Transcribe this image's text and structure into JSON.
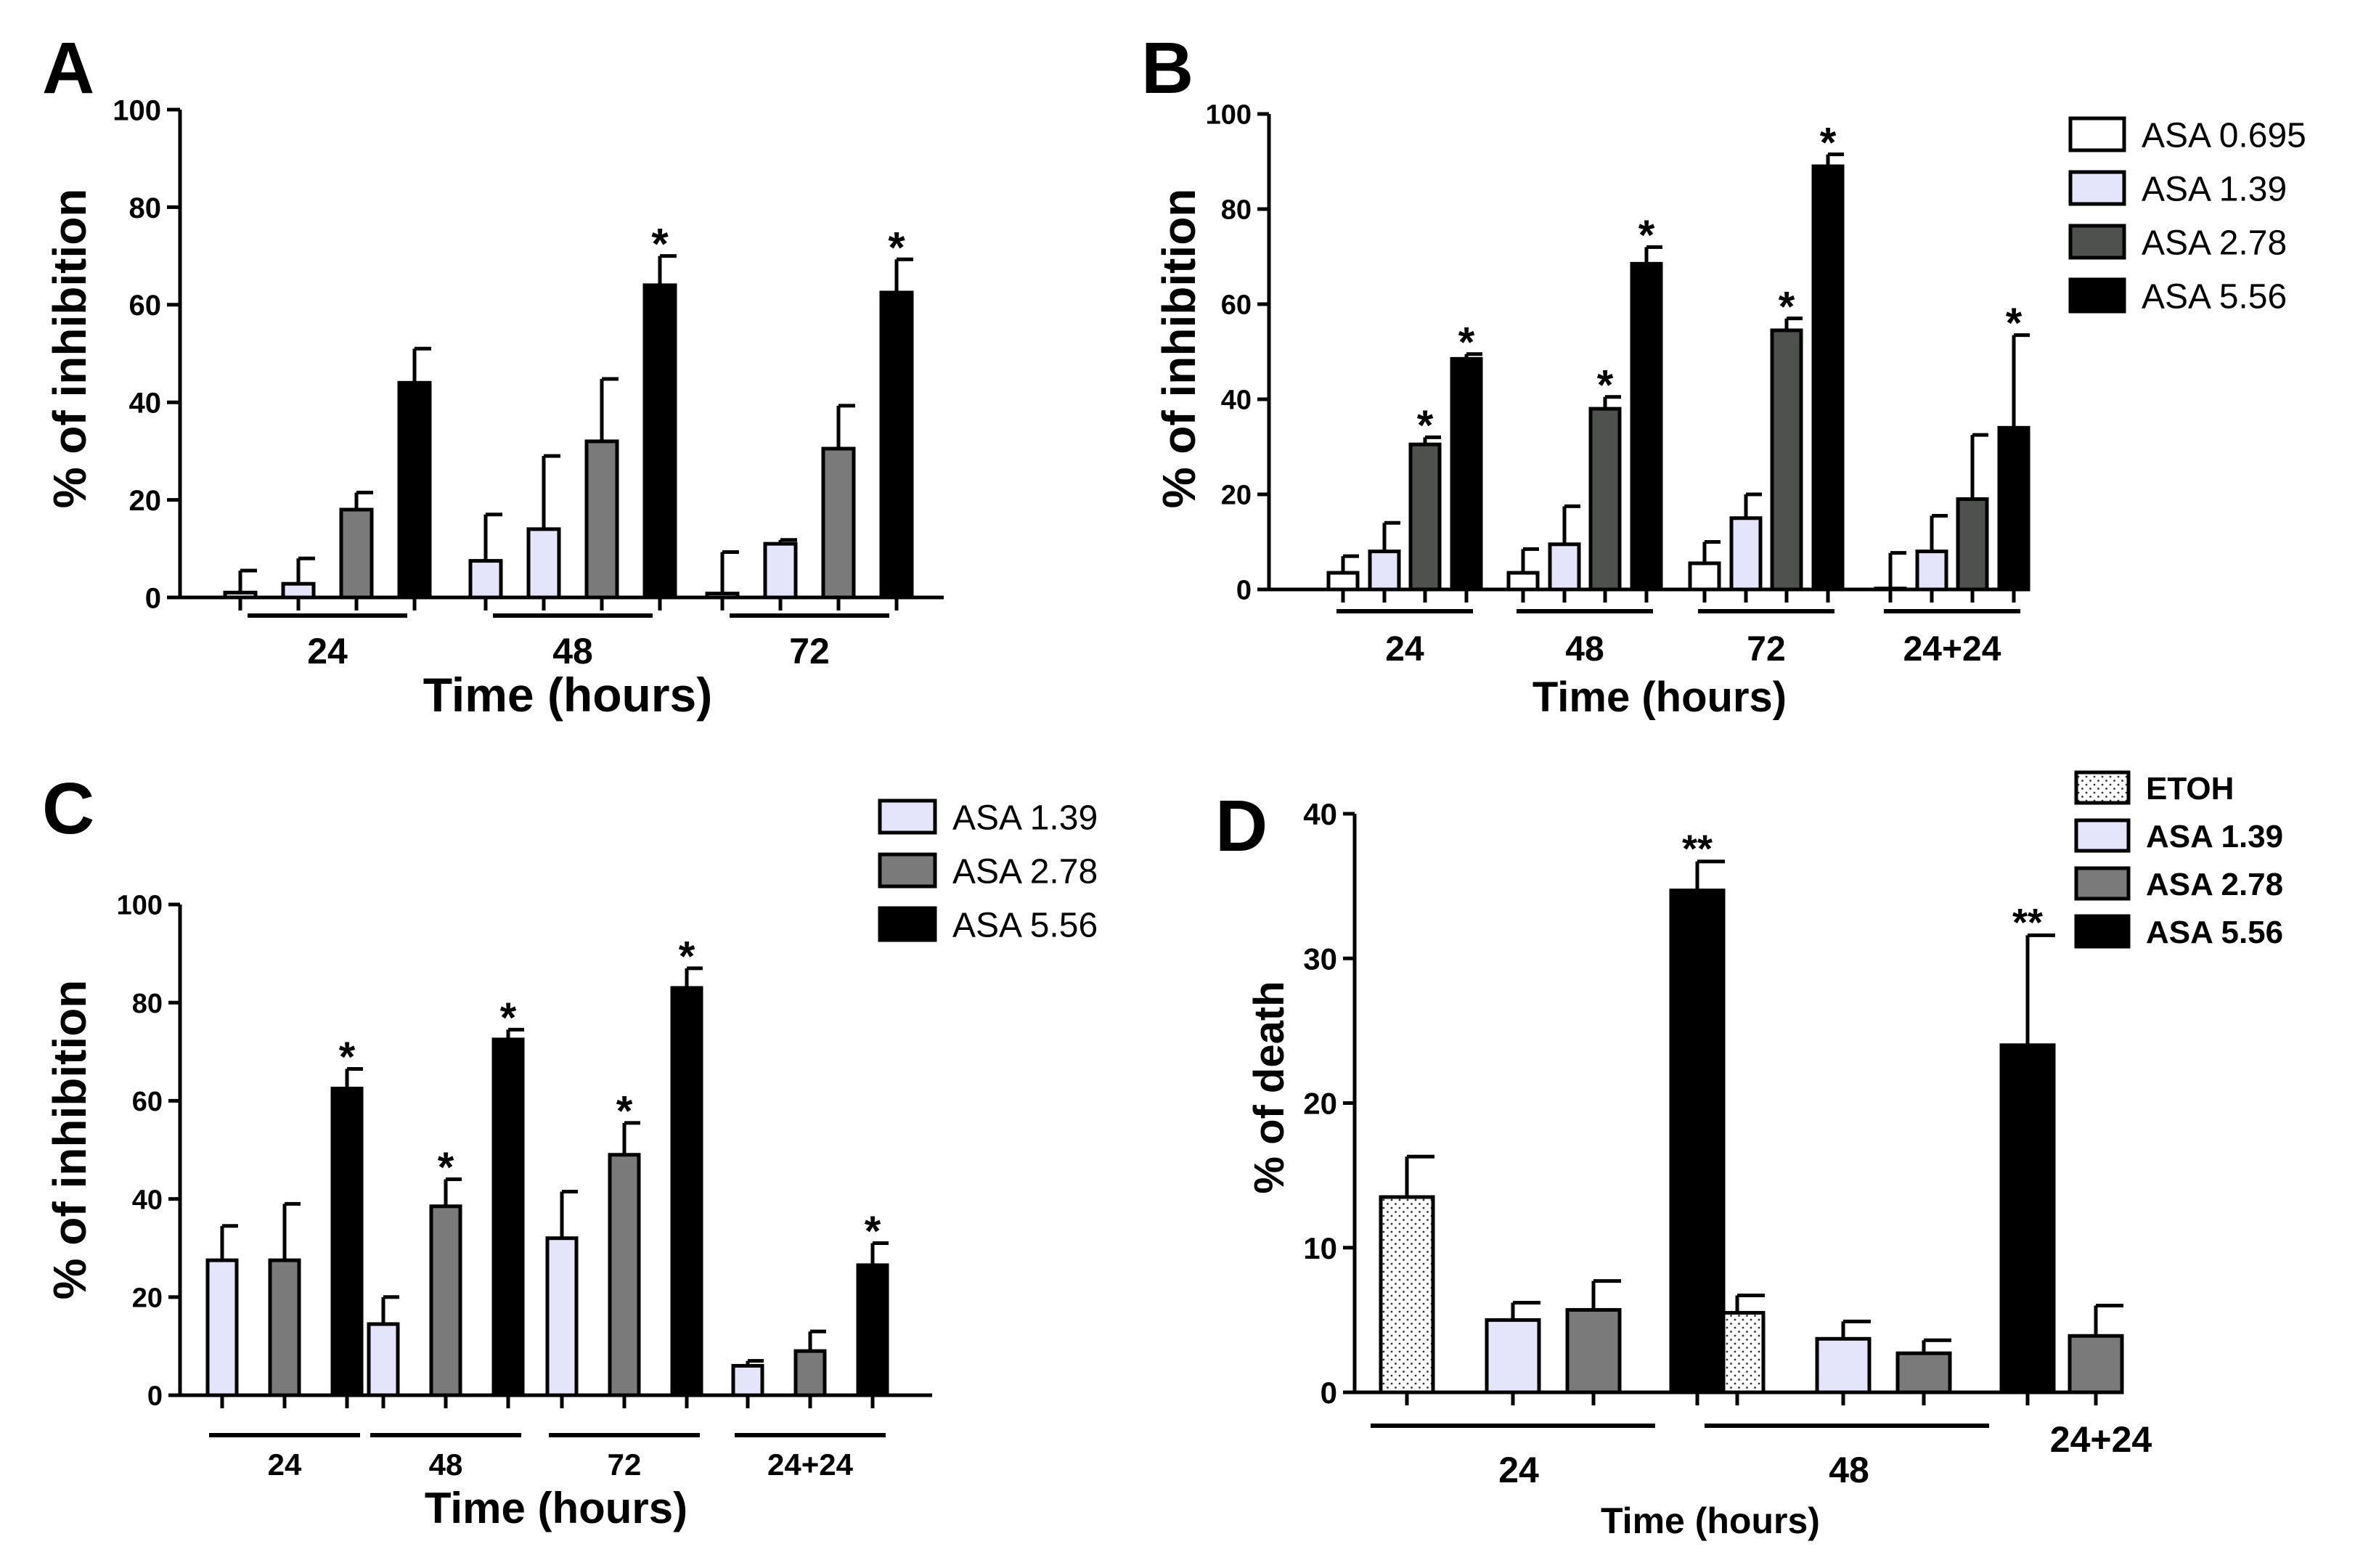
{
  "colors": {
    "ETOH": "#ffffff",
    "ASA 0.695": "#ffffff",
    "ASA 1.39": "#e4e4fa",
    "ASA 2.78": "#7a7a7a",
    "ASA 5.56": "#000000",
    "ASA 2.78 (panel B)": "#4e514e"
  },
  "chart_data": [
    {
      "panel": "A",
      "type": "bar",
      "ylabel": "% of inhibition",
      "xlabel": "Time (hours)",
      "ylim": [
        0,
        100
      ],
      "yticks": [
        0,
        20,
        40,
        60,
        80,
        100
      ],
      "categories": [
        "24",
        "48",
        "72"
      ],
      "legend": [],
      "series": [
        {
          "name": "ASA 1.39",
          "values": [
            1,
            7.5,
            0.8
          ],
          "errors": [
            4.5,
            9.5,
            8.5
          ],
          "sig": [
            "",
            "",
            ""
          ]
        },
        {
          "name": "ASA 1.39",
          "values": [
            2.8,
            14,
            11
          ],
          "errors": [
            5.2,
            15,
            0.8
          ],
          "sig": [
            "",
            "",
            ""
          ]
        },
        {
          "name": "ASA 2.78",
          "values": [
            18,
            32,
            30.5
          ],
          "errors": [
            3.5,
            12.8,
            8.8
          ],
          "sig": [
            "",
            "",
            ""
          ]
        },
        {
          "name": "ASA 5.56",
          "values": [
            44,
            64,
            62.5
          ],
          "errors": [
            7,
            6,
            6.8
          ],
          "sig": [
            "",
            "*",
            "*"
          ]
        }
      ]
    },
    {
      "panel": "B",
      "type": "bar",
      "ylabel": "% of inhibition",
      "xlabel": "Time (hours)",
      "ylim": [
        0,
        100
      ],
      "yticks": [
        0,
        20,
        40,
        60,
        80,
        100
      ],
      "categories": [
        "24",
        "48",
        "72",
        "24+24"
      ],
      "legend": [
        "ASA 0.695",
        "ASA 1.39",
        "ASA 2.78",
        "ASA 5.56"
      ],
      "series": [
        {
          "name": "ASA 0.695",
          "values": [
            3.5,
            3.5,
            5.5,
            0.2
          ],
          "errors": [
            3.5,
            5,
            4.5,
            7.5
          ],
          "sig": [
            "",
            "",
            "",
            ""
          ]
        },
        {
          "name": "ASA 1.39",
          "values": [
            8,
            9.5,
            15,
            8
          ],
          "errors": [
            6,
            8,
            5,
            7.5
          ],
          "sig": [
            "",
            "",
            "",
            ""
          ]
        },
        {
          "name": "ASA 2.78",
          "values": [
            30.5,
            38,
            54.5,
            19
          ],
          "errors": [
            1.5,
            2.5,
            2.5,
            13.5
          ],
          "sig": [
            "*",
            "*",
            "*",
            ""
          ]
        },
        {
          "name": "ASA 5.56",
          "values": [
            48.5,
            68.5,
            89,
            34
          ],
          "errors": [
            1,
            3.5,
            2.5,
            19.5
          ],
          "sig": [
            "*",
            "*",
            "*",
            "*"
          ]
        }
      ]
    },
    {
      "panel": "C",
      "type": "bar",
      "ylabel": "% of inhibition",
      "xlabel": "Time (hours)",
      "ylim": [
        0,
        100
      ],
      "yticks": [
        0,
        20,
        40,
        60,
        80,
        100
      ],
      "categories": [
        "24",
        "48",
        "72",
        "24+24"
      ],
      "legend": [
        "ASA 1.39",
        "ASA 2.78",
        "ASA 5.56"
      ],
      "series": [
        {
          "name": "ASA 1.39",
          "values": [
            27.5,
            14.5,
            32,
            6
          ],
          "errors": [
            7,
            5.5,
            9.5,
            1
          ],
          "sig": [
            "",
            "",
            "",
            ""
          ]
        },
        {
          "name": "ASA 2.78",
          "values": [
            27.5,
            38.5,
            49,
            9
          ],
          "errors": [
            11.5,
            5.5,
            6.5,
            4
          ],
          "sig": [
            "",
            "*",
            "*",
            ""
          ]
        },
        {
          "name": "ASA 5.56",
          "values": [
            62.5,
            72.5,
            83,
            26.5
          ],
          "errors": [
            4,
            2,
            4,
            4.5
          ],
          "sig": [
            "*",
            "*",
            "*",
            "*"
          ]
        }
      ]
    },
    {
      "panel": "D",
      "type": "bar",
      "ylabel": "% of death",
      "xlabel": "Time (hours)",
      "ylim": [
        0,
        40
      ],
      "yticks": [
        0,
        10,
        20,
        30,
        40
      ],
      "categories": [
        "24",
        "48",
        "24+24"
      ],
      "legend": [
        "ETOH",
        "ASA 1.39",
        "ASA 2.78",
        "ASA 5.56"
      ],
      "series": [
        {
          "name": "ETOH",
          "values": [
            13.5,
            5.5,
            null
          ],
          "errors": [
            2.8,
            1.2,
            0
          ],
          "sig": [
            "",
            "",
            ""
          ]
        },
        {
          "name": "ASA 1.39",
          "values": [
            5,
            3.7,
            null
          ],
          "errors": [
            1.2,
            1.2,
            0
          ],
          "sig": [
            "",
            "",
            ""
          ]
        },
        {
          "name": "ASA 2.78",
          "values": [
            5.7,
            2.7,
            3.9
          ],
          "errors": [
            2,
            0.9,
            2.1
          ],
          "sig": [
            "",
            "",
            ""
          ]
        },
        {
          "name": "ASA 5.56",
          "values": [
            34.7,
            24,
            null
          ],
          "errors": [
            2,
            7.6,
            0
          ],
          "sig": [
            "**",
            "**",
            ""
          ]
        }
      ]
    }
  ]
}
